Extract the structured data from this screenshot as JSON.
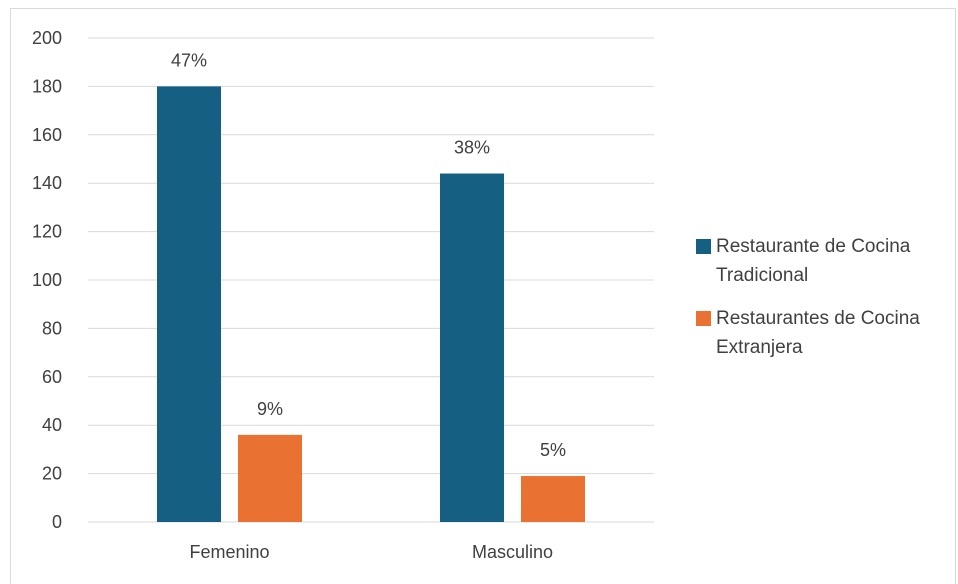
{
  "chart_data": {
    "type": "bar",
    "categories": [
      "Femenino",
      "Masculino"
    ],
    "series": [
      {
        "name": "Restaurante de Cocina Tradicional",
        "values": [
          180,
          144
        ],
        "labels": [
          "47%",
          "38%"
        ],
        "color": "#156082"
      },
      {
        "name": "Restaurantes de Cocina Extranjera",
        "values": [
          36,
          19
        ],
        "labels": [
          "9%",
          "5%"
        ],
        "color": "#E97132"
      }
    ],
    "ylim": [
      0,
      200
    ],
    "yticks": [
      "0",
      "20",
      "40",
      "60",
      "80",
      "100",
      "120",
      "140",
      "160",
      "180",
      "200"
    ],
    "grid": true,
    "legend_position": "right"
  },
  "legend": {
    "items": [
      {
        "label": "Restaurante de Cocina Tradicional",
        "color": "#156082"
      },
      {
        "label": "Restaurantes de Cocina Extranjera",
        "color": "#E97132"
      }
    ]
  }
}
